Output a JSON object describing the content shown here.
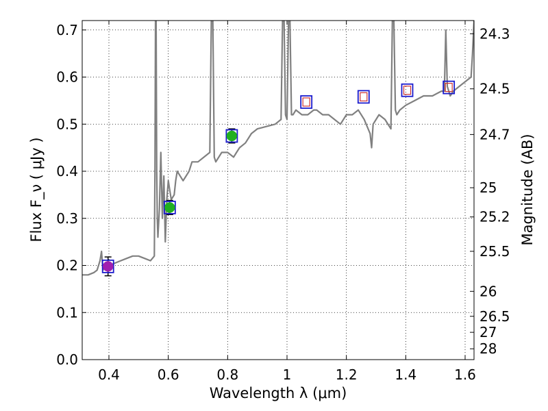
{
  "chart_data": {
    "type": "scatter",
    "xlabel": "Wavelength  λ (μm)",
    "ylabel": "Flux  F_ν  ( μJy )",
    "y2label": "Magnitude (AB)",
    "xlim": [
      0.31,
      1.63
    ],
    "ylim": [
      0.0,
      0.72
    ],
    "grid": true,
    "x_ticks": [
      0.4,
      0.6,
      0.8,
      1.0,
      1.2,
      1.4,
      1.6
    ],
    "x_tick_labels": [
      "0.4",
      "0.6",
      "0.8",
      "1",
      "1.2",
      "1.4",
      "1.6"
    ],
    "y_ticks": [
      0.0,
      0.1,
      0.2,
      0.3,
      0.4,
      0.5,
      0.6,
      0.7
    ],
    "y_tick_labels": [
      "0.0",
      "0.1",
      "0.2",
      "0.3",
      "0.4",
      "0.5",
      "0.6",
      "0.7"
    ],
    "right_ticks": [
      {
        "flux": 0.692,
        "label": "24.3"
      },
      {
        "flux": 0.575,
        "label": "24.5"
      },
      {
        "flux": 0.478,
        "label": "24.7"
      },
      {
        "flux": 0.365,
        "label": "25"
      },
      {
        "flux": 0.303,
        "label": "25.2"
      },
      {
        "flux": 0.23,
        "label": "25.5"
      },
      {
        "flux": 0.145,
        "label": "26"
      },
      {
        "flux": 0.092,
        "label": "26.5"
      },
      {
        "flux": 0.058,
        "label": "27"
      },
      {
        "flux": 0.023,
        "label": "28"
      }
    ],
    "series": [
      {
        "kind": "model-spectrum",
        "color": "#808080",
        "x": [
          0.31,
          0.33,
          0.35,
          0.36,
          0.37,
          0.375,
          0.38,
          0.39,
          0.4,
          0.42,
          0.44,
          0.46,
          0.48,
          0.5,
          0.52,
          0.54,
          0.553,
          0.555,
          0.557,
          0.559,
          0.561,
          0.563,
          0.565,
          0.57,
          0.575,
          0.58,
          0.585,
          0.59,
          0.595,
          0.6,
          0.605,
          0.61,
          0.62,
          0.625,
          0.63,
          0.64,
          0.65,
          0.66,
          0.67,
          0.68,
          0.7,
          0.72,
          0.74,
          0.745,
          0.75,
          0.755,
          0.76,
          0.78,
          0.8,
          0.82,
          0.83,
          0.84,
          0.86,
          0.88,
          0.9,
          0.93,
          0.96,
          0.98,
          0.985,
          0.99,
          0.995,
          1.0,
          1.005,
          1.01,
          1.015,
          1.02,
          1.03,
          1.05,
          1.07,
          1.09,
          1.1,
          1.12,
          1.14,
          1.16,
          1.18,
          1.2,
          1.22,
          1.24,
          1.26,
          1.28,
          1.285,
          1.29,
          1.31,
          1.33,
          1.35,
          1.355,
          1.36,
          1.365,
          1.37,
          1.38,
          1.4,
          1.43,
          1.46,
          1.49,
          1.52,
          1.53,
          1.535,
          1.54,
          1.545,
          1.55,
          1.56,
          1.58,
          1.6,
          1.62,
          1.625,
          1.63
        ],
        "y": [
          0.18,
          0.18,
          0.185,
          0.19,
          0.21,
          0.23,
          0.19,
          0.2,
          0.2,
          0.205,
          0.21,
          0.215,
          0.22,
          0.22,
          0.215,
          0.21,
          0.22,
          0.4,
          0.72,
          0.72,
          0.4,
          0.3,
          0.26,
          0.32,
          0.44,
          0.3,
          0.39,
          0.25,
          0.34,
          0.38,
          0.36,
          0.34,
          0.35,
          0.38,
          0.4,
          0.39,
          0.38,
          0.39,
          0.4,
          0.42,
          0.42,
          0.43,
          0.44,
          0.72,
          0.72,
          0.43,
          0.42,
          0.44,
          0.44,
          0.43,
          0.44,
          0.45,
          0.46,
          0.48,
          0.49,
          0.495,
          0.5,
          0.51,
          0.72,
          0.72,
          0.52,
          0.51,
          0.72,
          0.72,
          0.52,
          0.52,
          0.53,
          0.52,
          0.52,
          0.53,
          0.53,
          0.52,
          0.52,
          0.51,
          0.5,
          0.52,
          0.52,
          0.53,
          0.51,
          0.48,
          0.45,
          0.5,
          0.52,
          0.51,
          0.49,
          0.72,
          0.72,
          0.53,
          0.52,
          0.53,
          0.54,
          0.55,
          0.56,
          0.56,
          0.57,
          0.57,
          0.7,
          0.58,
          0.57,
          0.56,
          0.57,
          0.58,
          0.59,
          0.6,
          0.65,
          0.72
        ]
      },
      {
        "kind": "photometry",
        "points": [
          {
            "x": 0.397,
            "y": 0.198,
            "err": 0.02,
            "marker": "circle",
            "fill": "#a020b0",
            "square_color": "#1a1acc",
            "inner_square_color": null
          },
          {
            "x": 0.605,
            "y": 0.323,
            "err": 0.015,
            "marker": "circle",
            "fill": "#20b020",
            "square_color": "#1a1acc",
            "inner_square_color": null
          },
          {
            "x": 0.814,
            "y": 0.475,
            "err": 0.015,
            "marker": "circle",
            "fill": "#20b020",
            "square_color": "#1a1acc",
            "inner_square_color": null
          },
          {
            "x": 1.065,
            "y": 0.547,
            "err": 0,
            "marker": "none",
            "fill": null,
            "square_color": "#1a1acc",
            "inner_square_color": "#cc3333"
          },
          {
            "x": 1.258,
            "y": 0.558,
            "err": 0,
            "marker": "none",
            "fill": null,
            "square_color": "#1a1acc",
            "inner_square_color": "#cc3333"
          },
          {
            "x": 1.405,
            "y": 0.572,
            "err": 0,
            "marker": "none",
            "fill": null,
            "square_color": "#1a1acc",
            "inner_square_color": "#cc3333"
          },
          {
            "x": 1.545,
            "y": 0.578,
            "err": 0,
            "marker": "none",
            "fill": null,
            "square_color": "#1a1acc",
            "inner_square_color": "#cc3333"
          }
        ]
      }
    ]
  }
}
